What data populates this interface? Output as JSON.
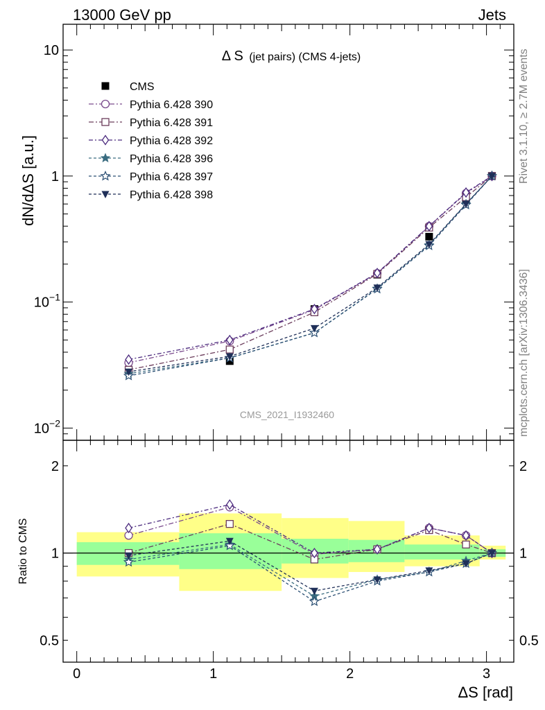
{
  "header": {
    "left": "13000 GeV pp",
    "right": "Jets"
  },
  "side_labels": {
    "rivet": "Rivet 3.1.10, ≥ 2.7M events",
    "mcplots": "mcplots.cern.ch [arXiv:1306.3436]"
  },
  "chart_data": [
    {
      "type": "scatter",
      "panel": "main",
      "title_main": "Δ S",
      "title_sub": "(jet pairs) (CMS 4-jets)",
      "ylabel": "dN/dΔS [a.u.]",
      "yscale": "log",
      "ylim": [
        0.008,
        16
      ],
      "xlim": [
        -0.1,
        3.2
      ],
      "yticks": [
        {
          "v": 10,
          "label": "10"
        },
        {
          "v": 1,
          "label": "1"
        },
        {
          "v": 0.1,
          "label": "10",
          "sup": "−1"
        },
        {
          "v": 0.01,
          "label": "10",
          "sup": "−2"
        }
      ],
      "watermark": "CMS_2021_I1932460",
      "x": [
        0.38,
        1.12,
        1.74,
        2.2,
        2.58,
        2.85,
        3.04
      ],
      "series": [
        {
          "name": "CMS",
          "marker": "square-filled",
          "color": "#000000",
          "values": [
            0.029,
            0.034,
            0.088,
            0.165,
            0.33,
            0.64,
            1.0
          ]
        },
        {
          "name": "Pythia 6.428 390",
          "marker": "circle",
          "color": "#7a4a8c",
          "values": [
            0.033,
            0.049,
            0.087,
            0.169,
            0.4,
            0.73,
            1.0
          ]
        },
        {
          "name": "Pythia 6.428 391",
          "marker": "square",
          "color": "#6b3c5b",
          "values": [
            0.029,
            0.042,
            0.083,
            0.167,
            0.39,
            0.68,
            1.0
          ]
        },
        {
          "name": "Pythia 6.428 392",
          "marker": "diamond",
          "color": "#4b2a7e",
          "values": [
            0.035,
            0.05,
            0.088,
            0.17,
            0.4,
            0.74,
            1.0
          ]
        },
        {
          "name": "Pythia 6.428 396",
          "marker": "star-filled",
          "color": "#3a6c80",
          "values": [
            0.027,
            0.036,
            0.057,
            0.128,
            0.283,
            0.6,
            1.0
          ]
        },
        {
          "name": "Pythia 6.428 397",
          "marker": "star",
          "color": "#2b4f73",
          "values": [
            0.026,
            0.036,
            0.057,
            0.127,
            0.28,
            0.59,
            1.0
          ]
        },
        {
          "name": "Pythia 6.428 398",
          "marker": "triangle-down-filled",
          "color": "#1f2f58",
          "values": [
            0.028,
            0.037,
            0.062,
            0.13,
            0.287,
            0.6,
            1.0
          ]
        }
      ]
    },
    {
      "type": "scatter",
      "panel": "ratio",
      "ylabel": "Ratio to CMS",
      "xlabel": "ΔS [rad]",
      "yscale": "log",
      "ylim": [
        0.42,
        2.45
      ],
      "xlim": [
        -0.1,
        3.2
      ],
      "yticks": [
        {
          "v": 2,
          "label": "2"
        },
        {
          "v": 1,
          "label": "1"
        },
        {
          "v": 0.5,
          "label": "0.5"
        }
      ],
      "xticks": [
        {
          "v": 0,
          "label": "0"
        },
        {
          "v": 1,
          "label": "1"
        },
        {
          "v": 2,
          "label": "2"
        },
        {
          "v": 3,
          "label": "3"
        }
      ],
      "uncertainty_bands": {
        "bins": [
          [
            0,
            0.75
          ],
          [
            0.75,
            1.5
          ],
          [
            1.5,
            1.99
          ],
          [
            1.99,
            2.4
          ],
          [
            2.4,
            2.95
          ],
          [
            2.95,
            3.14
          ]
        ],
        "stat": [
          [
            0.91,
            1.09
          ],
          [
            0.88,
            1.17
          ],
          [
            0.92,
            1.12
          ],
          [
            0.93,
            1.11
          ],
          [
            0.95,
            1.07
          ],
          [
            0.97,
            1.03
          ]
        ],
        "total": [
          [
            0.83,
            1.18
          ],
          [
            0.74,
            1.37
          ],
          [
            0.82,
            1.32
          ],
          [
            0.86,
            1.29
          ],
          [
            0.9,
            1.15
          ],
          [
            0.95,
            1.06
          ]
        ],
        "stat_color": "#99ff99",
        "total_color": "#ffff88"
      },
      "x": [
        0.38,
        1.12,
        1.74,
        2.2,
        2.58,
        2.85,
        3.04
      ],
      "series": [
        {
          "name": "Pythia 6.428 390",
          "marker": "circle",
          "color": "#7a4a8c",
          "values": [
            1.15,
            1.44,
            0.99,
            1.03,
            1.22,
            1.15,
            1.0
          ]
        },
        {
          "name": "Pythia 6.428 391",
          "marker": "square",
          "color": "#6b3c5b",
          "values": [
            1.0,
            1.26,
            0.95,
            1.03,
            1.2,
            1.07,
            1.0
          ]
        },
        {
          "name": "Pythia 6.428 392",
          "marker": "diamond",
          "color": "#4b2a7e",
          "values": [
            1.22,
            1.47,
            1.0,
            1.03,
            1.22,
            1.15,
            1.0
          ]
        },
        {
          "name": "Pythia 6.428 396",
          "marker": "star-filled",
          "color": "#3a6c80",
          "values": [
            0.95,
            1.07,
            0.71,
            0.81,
            0.86,
            0.94,
            1.0
          ]
        },
        {
          "name": "Pythia 6.428 397",
          "marker": "star",
          "color": "#2b4f73",
          "values": [
            0.93,
            1.06,
            0.68,
            0.8,
            0.86,
            0.92,
            1.0
          ]
        },
        {
          "name": "Pythia 6.428 398",
          "marker": "triangle-down-filled",
          "color": "#1f2f58",
          "values": [
            0.98,
            1.1,
            0.74,
            0.81,
            0.87,
            0.92,
            1.0
          ]
        }
      ]
    }
  ]
}
